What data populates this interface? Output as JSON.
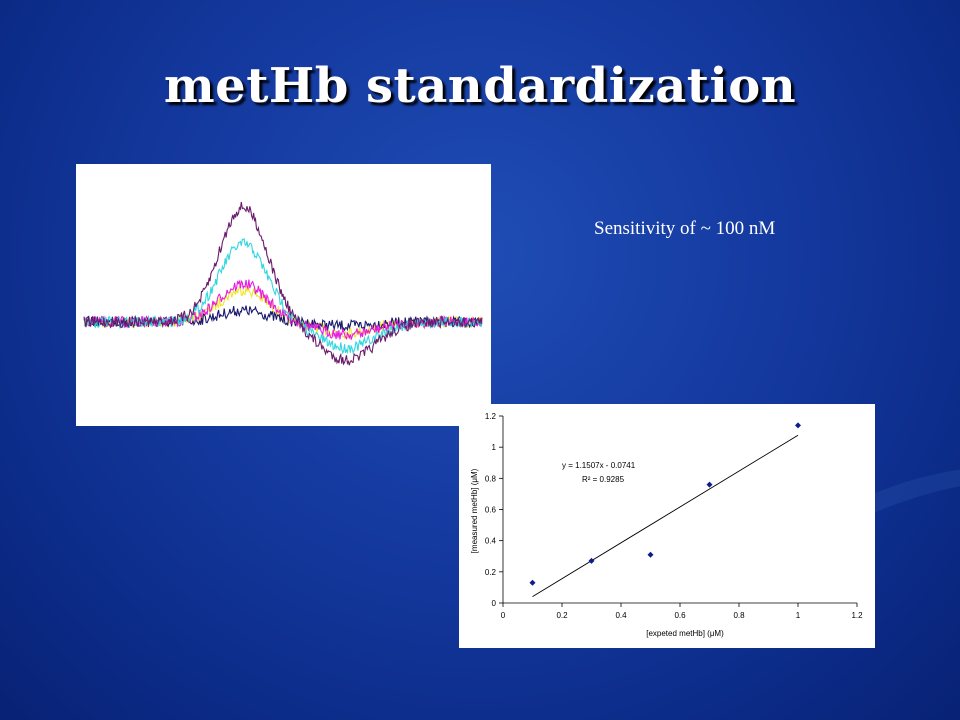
{
  "slide": {
    "title": "metHb standardization",
    "note": "Sensitivity of  ~ 100 nM"
  },
  "colors": {
    "background": "#14399f",
    "spectra_series": [
      "#1a1a6e",
      "#f0e628",
      "#e81ce0",
      "#33d6e0",
      "#6b1b6b"
    ],
    "calib_marker": "#0b1d8c"
  },
  "chart_data": [
    {
      "type": "line",
      "title": "",
      "xlabel": "",
      "ylabel": "",
      "axes_shown": false,
      "series_peak_heights": [
        0.1,
        0.28,
        0.33,
        0.68,
        1.0
      ],
      "series_colors": [
        "#1a1a6e",
        "#f0e628",
        "#e81ce0",
        "#33d6e0",
        "#6b1b6b"
      ]
    },
    {
      "type": "scatter",
      "title": "",
      "xlabel": "[expeted metHb] (μM)",
      "ylabel": "[measured metHb] (μM)",
      "xlim": [
        0,
        1.2
      ],
      "ylim": [
        0,
        1.2
      ],
      "x_ticks": [
        "0",
        "0.2",
        "0.4",
        "0.6",
        "0.8",
        "1",
        "1.2"
      ],
      "y_ticks": [
        "0",
        "0.2",
        "0.4",
        "0.6",
        "0.8",
        "1",
        "1.2"
      ],
      "points": [
        {
          "x": 0.1,
          "y": 0.13
        },
        {
          "x": 0.3,
          "y": 0.27
        },
        {
          "x": 0.5,
          "y": 0.31
        },
        {
          "x": 0.7,
          "y": 0.76
        },
        {
          "x": 1.0,
          "y": 1.14
        }
      ],
      "trendline": {
        "slope": 1.1507,
        "intercept": -0.0741,
        "x_range": [
          0.1,
          1.0
        ]
      },
      "equation_label": "y = 1.1507x - 0.0741",
      "r2_label": "R² = 0.9285",
      "grid": false
    }
  ]
}
